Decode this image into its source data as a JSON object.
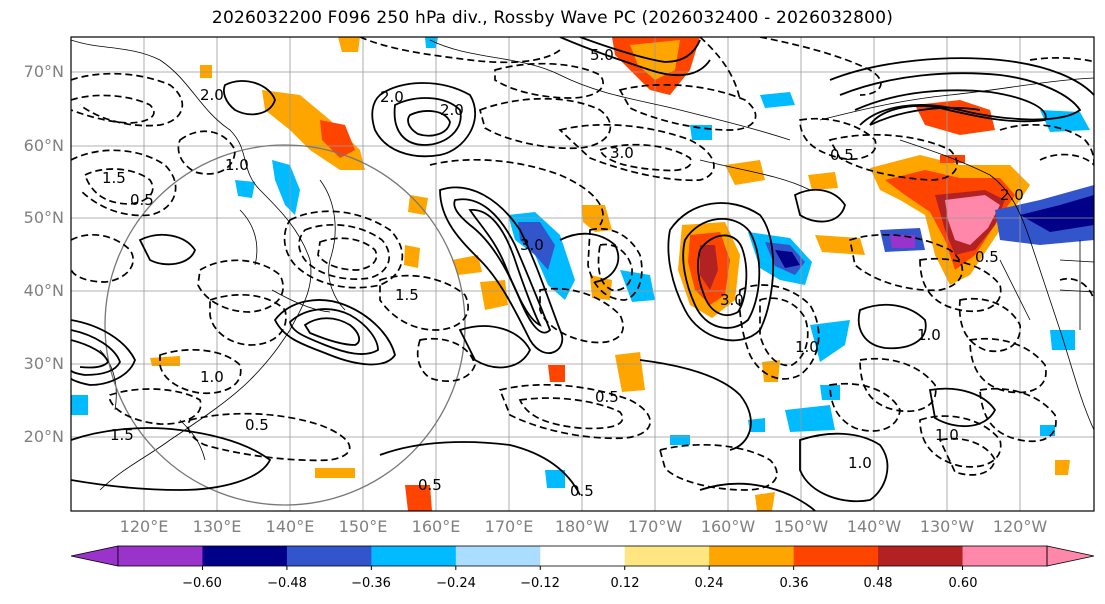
{
  "title": "2026032200 F096 250 hPa div., Rossby Wave PC (2026032400 - 2026032800)",
  "lat_labels": [
    "70°N",
    "60°N",
    "50°N",
    "40°N",
    "30°N",
    "20°N"
  ],
  "lon_labels": [
    "120°E",
    "130°E",
    "140°E",
    "150°E",
    "160°E",
    "170°E",
    "180°W",
    "170°W",
    "160°W",
    "150°W",
    "140°W",
    "130°W",
    "120°W"
  ],
  "colorbar": {
    "colors": [
      "#9933cc",
      "#000088",
      "#3355cc",
      "#00bbff",
      "#aaddff",
      "#ffffff",
      "#ffe680",
      "#ffa500",
      "#ff4400",
      "#b22222",
      "#ff88aa"
    ],
    "ticks": [
      "−0.60",
      "−0.48",
      "−0.36",
      "−0.24",
      "−0.12",
      "0.12",
      "0.24",
      "0.36",
      "0.48",
      "0.60"
    ]
  },
  "contour_labels": [
    {
      "text": "0.5"
    },
    {
      "text": "1.0"
    },
    {
      "text": "1.5"
    },
    {
      "text": "2.0"
    },
    {
      "text": "3.0"
    },
    {
      "text": "5.0"
    },
    {
      "text": "0.5"
    },
    {
      "text": "1.0"
    },
    {
      "text": "1.5"
    },
    {
      "text": "2.0"
    },
    {
      "text": "3.0"
    },
    {
      "text": "0.5"
    },
    {
      "text": "1.0"
    },
    {
      "text": "1.5"
    },
    {
      "text": "2.0"
    },
    {
      "text": "0.5"
    },
    {
      "text": "1.0"
    },
    {
      "text": "0.5"
    },
    {
      "text": "1.0"
    },
    {
      "text": "0.5"
    },
    {
      "text": "1.0"
    },
    {
      "text": "3.0"
    },
    {
      "text": "2.0"
    },
    {
      "text": "0.5"
    }
  ]
}
